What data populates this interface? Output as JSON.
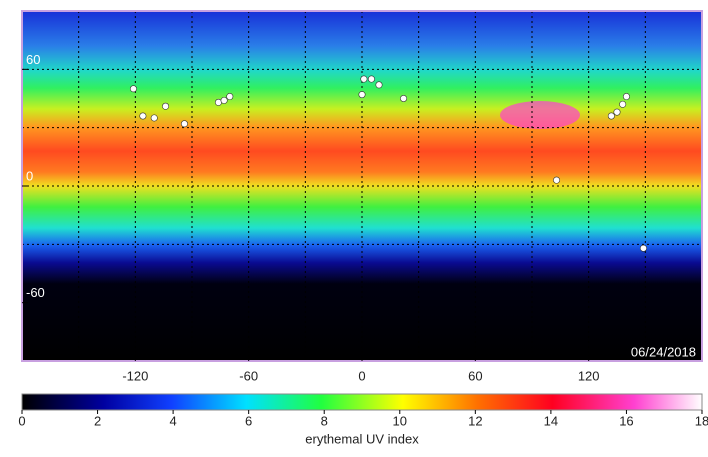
{
  "map": {
    "date": "06/24/2018",
    "xlim": [
      -180,
      180
    ],
    "ylim": [
      -90,
      90
    ],
    "xticks": [
      -120,
      -60,
      0,
      60,
      120
    ],
    "yticks": [
      -60,
      0,
      60
    ],
    "grid_x": [
      -150,
      -120,
      -90,
      -60,
      -30,
      0,
      30,
      60,
      90,
      120,
      150
    ],
    "grid_y": [
      -30,
      0,
      30,
      60
    ],
    "sites": [
      {
        "lon": -121,
        "lat": 50
      },
      {
        "lon": -116,
        "lat": 36
      },
      {
        "lon": -110,
        "lat": 35
      },
      {
        "lon": -104,
        "lat": 41
      },
      {
        "lon": -94,
        "lat": 32
      },
      {
        "lon": -76,
        "lat": 43
      },
      {
        "lon": -73,
        "lat": 44
      },
      {
        "lon": -70,
        "lat": 46
      },
      {
        "lon": 0,
        "lat": 47
      },
      {
        "lon": 1,
        "lat": 55
      },
      {
        "lon": 5,
        "lat": 55
      },
      {
        "lon": 9,
        "lat": 52
      },
      {
        "lon": 22,
        "lat": 45
      },
      {
        "lon": 103,
        "lat": 3
      },
      {
        "lon": 132,
        "lat": 36
      },
      {
        "lon": 135,
        "lat": 38
      },
      {
        "lon": 138,
        "lat": 42
      },
      {
        "lon": 140,
        "lat": 46
      },
      {
        "lon": 149,
        "lat": -32
      }
    ]
  },
  "colorbar": {
    "label": "erythemal UV index",
    "lim": [
      0,
      18
    ],
    "ticks": [
      0,
      2,
      4,
      6,
      8,
      10,
      12,
      14,
      16,
      18
    ]
  }
}
